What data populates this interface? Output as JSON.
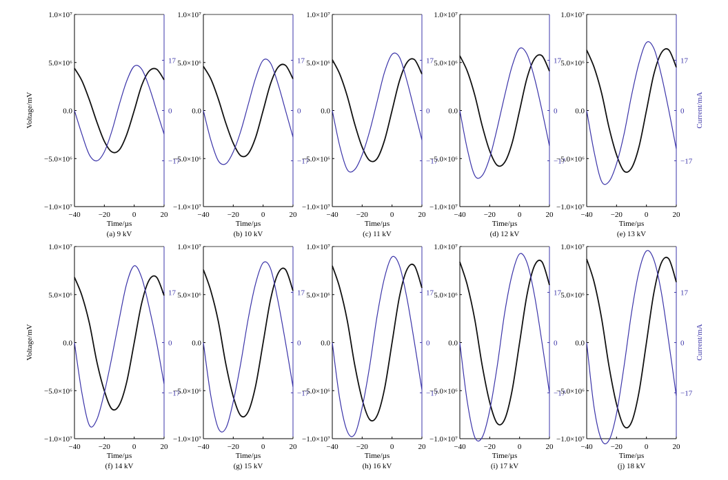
{
  "figure": {
    "ylabel_left": "Voltage/mV",
    "ylabel_right": "Current/mA",
    "xlabel": "Time/µs",
    "colors": {
      "voltage": "#111111",
      "current": "#3a33a8",
      "axis": "#000000",
      "current_axis": "#3a33a8"
    }
  },
  "chart_data": {
    "type": "line",
    "layout": "2x5 small multiples",
    "xlim": [
      -40,
      20
    ],
    "xticks": [
      -40,
      -20,
      0,
      20
    ],
    "xtick_labels": [
      "−40",
      "−20",
      "0",
      "20"
    ],
    "ylim_voltage": [
      -10000000,
      10000000
    ],
    "yticks_voltage": [
      -10000000,
      -5000000,
      0,
      5000000,
      10000000
    ],
    "ytick_labels_voltage": [
      "−1.0×10⁷",
      "−5.0×10⁶",
      "0.0",
      "5.0×10⁶",
      "1.0×10⁷"
    ],
    "ylim_current": [
      -32.5,
      32.5
    ],
    "yticks_current": [
      -17,
      0,
      17
    ],
    "ytick_labels_current": [
      "−17",
      "0",
      "17"
    ],
    "x_samples": [
      -40,
      -35,
      -30,
      -25,
      -20,
      -15,
      -10,
      -5,
      0,
      5,
      10,
      15,
      20
    ],
    "panels": [
      {
        "label": "(a) 9 kV",
        "voltage": [
          4400000,
          3100000,
          1100000,
          -1200000,
          -3200000,
          -4300000,
          -4100000,
          -2500000,
          0,
          2600000,
          4100000,
          4300000,
          3200000
        ],
        "current": [
          0,
          -8,
          -15,
          -17,
          -14,
          -7,
          2,
          10,
          15,
          14,
          8,
          0,
          -8
        ]
      },
      {
        "label": "(b) 10 kV",
        "voltage": [
          4600000,
          3300000,
          1200000,
          -1300000,
          -3400000,
          -4700000,
          -4500000,
          -2800000,
          0,
          2800000,
          4500000,
          4700000,
          3300000
        ],
        "current": [
          0,
          -10,
          -17,
          -18,
          -14,
          -7,
          2,
          11,
          17,
          16,
          9,
          0,
          -9
        ]
      },
      {
        "label": "(c) 11 kV",
        "voltage": [
          5300000,
          3800000,
          1500000,
          -1400000,
          -3800000,
          -5200000,
          -5000000,
          -3100000,
          0,
          3100000,
          5000000,
          5300000,
          3800000
        ],
        "current": [
          0,
          -12,
          -20,
          -20,
          -15,
          -7,
          3,
          13,
          19,
          18,
          10,
          0,
          -10
        ]
      },
      {
        "label": "(d) 12 kV",
        "voltage": [
          5700000,
          4100000,
          1600000,
          -1600000,
          -4200000,
          -5700000,
          -5400000,
          -3400000,
          0,
          3400000,
          5400000,
          5700000,
          4100000
        ],
        "current": [
          0,
          -13,
          -22,
          -22,
          -16,
          -6,
          5,
          15,
          21,
          19,
          11,
          0,
          -12
        ]
      },
      {
        "label": "(e) 13 kV",
        "voltage": [
          6300000,
          4500000,
          1800000,
          -1800000,
          -4600000,
          -6300000,
          -6000000,
          -3800000,
          0,
          3800000,
          6000000,
          6300000,
          4500000
        ],
        "current": [
          0,
          -14,
          -24,
          -24,
          -18,
          -8,
          5,
          16,
          23,
          21,
          12,
          0,
          -13
        ]
      },
      {
        "label": "(f) 14 kV",
        "voltage": [
          6800000,
          4900000,
          2000000,
          -2000000,
          -5000000,
          -6900000,
          -6500000,
          -4100000,
          0,
          4100000,
          6500000,
          6800000,
          4900000
        ],
        "current": [
          0,
          -17,
          -28,
          -26,
          -17,
          -5,
          8,
          20,
          26,
          22,
          12,
          0,
          -14
        ]
      },
      {
        "label": "(g) 15 kV",
        "voltage": [
          7600000,
          5400000,
          2200000,
          -2200000,
          -5600000,
          -7600000,
          -7200000,
          -4500000,
          0,
          4500000,
          7200000,
          7600000,
          5400000
        ],
        "current": [
          0,
          -18,
          -29,
          -29,
          -20,
          -7,
          8,
          20,
          27,
          25,
          14,
          0,
          -15
        ]
      },
      {
        "label": "(h) 16 kV",
        "voltage": [
          8000000,
          5700000,
          2300000,
          -2300000,
          -5900000,
          -8000000,
          -7600000,
          -4800000,
          0,
          4800000,
          7600000,
          8000000,
          5700000
        ],
        "current": [
          0,
          -19,
          -30,
          -31,
          -22,
          -8,
          9,
          22,
          29,
          26,
          15,
          0,
          -16
        ]
      },
      {
        "label": "(i) 17 kV",
        "voltage": [
          8400000,
          6000000,
          2400000,
          -2400000,
          -6200000,
          -8400000,
          -8000000,
          -5000000,
          0,
          5000000,
          8000000,
          8400000,
          6000000
        ],
        "current": [
          0,
          -20,
          -32,
          -32,
          -23,
          -8,
          10,
          23,
          30,
          27,
          16,
          0,
          -17
        ]
      },
      {
        "label": "(j) 18 kV",
        "voltage": [
          8700000,
          6300000,
          2500000,
          -2500000,
          -6400000,
          -8700000,
          -8300000,
          -5200000,
          0,
          5200000,
          8300000,
          8700000,
          6300000
        ],
        "current": [
          0,
          -22,
          -33,
          -33,
          -24,
          -8,
          10,
          24,
          31,
          28,
          17,
          0,
          -18
        ]
      }
    ]
  }
}
